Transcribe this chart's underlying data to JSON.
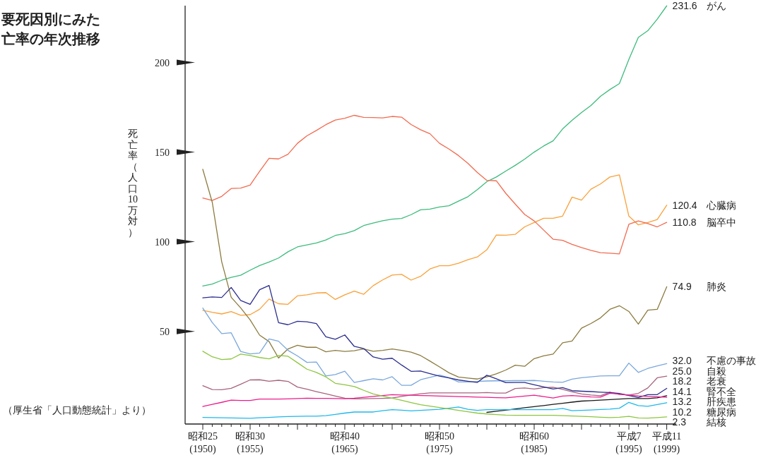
{
  "chart_data": {
    "type": "line",
    "title": "要死因別にみた",
    "subtitle": "亡率の年次推移",
    "ylabel": "死亡率（人口10万対）",
    "annotations": [
      "（厚生省「人口動態統計」より）"
    ],
    "ylim": [
      -1.7,
      231.7
    ],
    "yticks": [
      50,
      100,
      150,
      200
    ],
    "categories": [
      "昭和25\n(1950)",
      null,
      null,
      null,
      null,
      "昭和30\n(1955)",
      null,
      null,
      null,
      null,
      null,
      null,
      null,
      null,
      null,
      "昭和40\n(1965)",
      null,
      null,
      null,
      null,
      null,
      null,
      null,
      null,
      null,
      "昭和50\n(1975)",
      null,
      null,
      null,
      null,
      null,
      null,
      null,
      null,
      null,
      "昭和60\n(1985)",
      null,
      null,
      null,
      null,
      null,
      null,
      null,
      null,
      null,
      "平成7\n(1995)",
      null,
      null,
      null,
      "平成11\n(1999)"
    ],
    "series": [
      {
        "name": "がん",
        "color": "#3dbb7c",
        "values": [
          75.3,
          76.4,
          78.5,
          80.1,
          81.3,
          84.1,
          86.7,
          88.7,
          90.9,
          94.4,
          97.1,
          98.2,
          99.3,
          101,
          103.5,
          104.5,
          106.2,
          109,
          110.4,
          111.7,
          112.6,
          113,
          115.1,
          117.8,
          118.2,
          119.4,
          120.1,
          122.6,
          125.1,
          129.1,
          133.5,
          136.1,
          139.4,
          142.6,
          146.1,
          150,
          153.4,
          156.3,
          162.9,
          167.7,
          172.1,
          176,
          181.1,
          184.9,
          188.2,
          201.7,
          214,
          217.7,
          224.2,
          231.6
        ],
        "value_labels": [
          null,
          null,
          null,
          null,
          null,
          null,
          null,
          null,
          null,
          null,
          null,
          null,
          null,
          null,
          null,
          null,
          null,
          null,
          null,
          null,
          null,
          null,
          null,
          null,
          null,
          null,
          null,
          null,
          null,
          null,
          null,
          null,
          null,
          null,
          null,
          null,
          null,
          null,
          null,
          null,
          null,
          null,
          null,
          null,
          null,
          null,
          null,
          null,
          null,
          "231.6"
        ]
      },
      {
        "name": "心臓病",
        "color": "#f9a13a",
        "values": [
          61.7,
          60.6,
          59.7,
          61,
          59,
          59.3,
          62.3,
          68,
          65.4,
          65.1,
          69.8,
          70.4,
          71.4,
          71.6,
          67.8,
          70.4,
          72.4,
          70.7,
          75.5,
          78.7,
          81.4,
          81.8,
          78.6,
          80.7,
          84.8,
          86.6,
          86.6,
          88,
          90,
          91.5,
          95.5,
          103.7,
          103.6,
          104.1,
          108.3,
          110.7,
          113.1,
          113.1,
          114.3,
          124.9,
          123.2,
          129.3,
          132.2,
          136.1,
          137.3,
          114.3,
          109.4,
          110.7,
          112.4,
          120.4
        ],
        "value_labels": [
          null,
          null,
          null,
          null,
          null,
          null,
          null,
          null,
          null,
          null,
          null,
          null,
          null,
          null,
          null,
          null,
          null,
          null,
          null,
          null,
          null,
          null,
          null,
          null,
          null,
          null,
          null,
          null,
          null,
          null,
          null,
          null,
          null,
          null,
          null,
          null,
          null,
          null,
          null,
          null,
          null,
          null,
          null,
          null,
          null,
          null,
          null,
          null,
          null,
          "120.4"
        ]
      },
      {
        "name": "脳卒中",
        "color": "#f26b50",
        "values": [
          124.4,
          123,
          125.3,
          129.7,
          129.9,
          131.6,
          139.3,
          146.5,
          146.2,
          148.8,
          154.9,
          159.1,
          162.1,
          165.3,
          167.9,
          168.9,
          170.5,
          169.4,
          169.3,
          169.1,
          169.9,
          169.5,
          165.4,
          162.5,
          160.2,
          154.9,
          151.7,
          148.1,
          143.7,
          138.6,
          134.2,
          134,
          127,
          121,
          115.2,
          111.6,
          106.5,
          101.4,
          100.8,
          98.5,
          96.7,
          95.2,
          93.9,
          93.6,
          93.2,
          109.7,
          111.6,
          110.1,
          108.3,
          110.8
        ],
        "value_labels": [
          null,
          null,
          null,
          null,
          null,
          null,
          null,
          null,
          null,
          null,
          null,
          null,
          null,
          null,
          null,
          null,
          null,
          null,
          null,
          null,
          null,
          null,
          null,
          null,
          null,
          null,
          null,
          null,
          null,
          null,
          null,
          null,
          null,
          null,
          null,
          null,
          null,
          null,
          null,
          null,
          null,
          null,
          null,
          null,
          null,
          null,
          null,
          null,
          null,
          "110.8"
        ]
      },
      {
        "name": "肺炎",
        "color": "#8b7b3e",
        "values": [
          140.4,
          122,
          88.8,
          69,
          63.1,
          56.4,
          47.9,
          44.3,
          35.1,
          40.2,
          42.2,
          41.1,
          41.1,
          38.6,
          39.4,
          38.8,
          39.2,
          40.2,
          38.9,
          39.4,
          40.2,
          39.4,
          38.4,
          36.5,
          33.4,
          30.2,
          26.9,
          24.5,
          23.9,
          23.4,
          24.6,
          26.3,
          28.4,
          31.1,
          30.5,
          34.8,
          36.3,
          37.3,
          43.6,
          44.6,
          51.8,
          54.4,
          57.5,
          62.3,
          64.3,
          61.1,
          54,
          61.8,
          62.3,
          74.9
        ],
        "value_labels": [
          null,
          null,
          null,
          null,
          null,
          null,
          null,
          null,
          null,
          null,
          null,
          null,
          null,
          null,
          null,
          null,
          null,
          null,
          null,
          null,
          null,
          null,
          null,
          null,
          null,
          null,
          null,
          null,
          null,
          null,
          null,
          null,
          null,
          null,
          null,
          null,
          null,
          null,
          null,
          null,
          null,
          null,
          null,
          null,
          null,
          null,
          null,
          null,
          null,
          "74.9"
        ]
      },
      {
        "name": "不慮の事故",
        "color": "#7aa7dc",
        "values": [
          63,
          54.9,
          48.7,
          49.2,
          38.8,
          37.4,
          37.9,
          45.8,
          44.5,
          39.4,
          36.3,
          32.7,
          32.9,
          25.1,
          25.9,
          27.8,
          21.5,
          22.5,
          23.5,
          22.9,
          24.7,
          19.9,
          19.9,
          23,
          24.3,
          25.6,
          24.1,
          21.8,
          21.8,
          22.1,
          22.3,
          22.4,
          22.4,
          22.5,
          22.5,
          22.6,
          22.2,
          21.8,
          21.6,
          23.3,
          24.1,
          24.6,
          25.1,
          25.2,
          25.2,
          32.3,
          27.1,
          29.3,
          30.7,
          32
        ],
        "value_labels": [
          null,
          null,
          null,
          null,
          null,
          null,
          null,
          null,
          null,
          null,
          null,
          null,
          null,
          null,
          null,
          null,
          null,
          null,
          null,
          null,
          null,
          null,
          null,
          null,
          null,
          null,
          null,
          null,
          null,
          null,
          null,
          null,
          null,
          null,
          null,
          null,
          null,
          null,
          null,
          null,
          null,
          null,
          null,
          null,
          null,
          null,
          null,
          null,
          null,
          "32.0"
        ]
      },
      {
        "name": "自殺",
        "color": "#a8637e",
        "values": [
          19.7,
          17.5,
          17.4,
          18.2,
          20.5,
          22.9,
          23,
          22.2,
          22.7,
          22.1,
          18.9,
          17.7,
          16.4,
          15.2,
          13.9,
          12.7,
          12.3,
          12.4,
          12.5,
          12.6,
          12.8,
          13.7,
          14.5,
          15.2,
          15.7,
          15.7,
          15.7,
          15.7,
          15.7,
          15.7,
          15.9,
          15.6,
          15.6,
          18.1,
          18.4,
          17.8,
          18.6,
          18.8,
          17.6,
          16.3,
          15.1,
          14.5,
          14.1,
          16.1,
          14.8,
          14.5,
          15.4,
          18.4,
          24.1,
          25
        ],
        "value_labels": [
          null,
          null,
          null,
          null,
          null,
          null,
          null,
          null,
          null,
          null,
          null,
          null,
          null,
          null,
          null,
          null,
          null,
          null,
          null,
          null,
          null,
          null,
          null,
          null,
          null,
          null,
          null,
          null,
          null,
          null,
          null,
          null,
          null,
          null,
          null,
          null,
          null,
          null,
          null,
          null,
          null,
          null,
          null,
          null,
          null,
          null,
          null,
          null,
          null,
          "25.0"
        ]
      },
      {
        "name": "老衰",
        "color": "#2b2e8f",
        "values": [
          68.7,
          69.2,
          68.9,
          74.5,
          67.2,
          65.1,
          73.2,
          75.6,
          54.8,
          53.7,
          55.6,
          55.3,
          54.3,
          47,
          45.6,
          48,
          41.6,
          40.4,
          35.7,
          34.5,
          35,
          31.2,
          27.7,
          27.9,
          26.4,
          25,
          24,
          22.9,
          22.2,
          21.5,
          25.5,
          23.5,
          21.4,
          21.5,
          21.5,
          20.2,
          19,
          17.8,
          18.6,
          16.9,
          16.6,
          16.4,
          16.1,
          15.9,
          15.4,
          14.2,
          13.1,
          14.7,
          14.7,
          18.2
        ],
        "value_labels": [
          null,
          null,
          null,
          null,
          null,
          null,
          null,
          null,
          null,
          null,
          null,
          null,
          null,
          null,
          null,
          null,
          null,
          null,
          null,
          null,
          null,
          null,
          null,
          null,
          null,
          null,
          null,
          null,
          null,
          null,
          null,
          null,
          null,
          null,
          null,
          null,
          null,
          null,
          null,
          null,
          null,
          null,
          null,
          null,
          null,
          null,
          null,
          null,
          null,
          "18.2"
        ]
      },
      {
        "name": "腎不全",
        "color": "#1a1a1a",
        "values": [
          null,
          null,
          null,
          null,
          null,
          null,
          null,
          null,
          null,
          null,
          null,
          null,
          null,
          null,
          null,
          null,
          null,
          null,
          null,
          null,
          null,
          null,
          null,
          null,
          null,
          null,
          null,
          null,
          null,
          null,
          4.8,
          5.4,
          6,
          6.7,
          7.4,
          8,
          8.6,
          9.3,
          9.9,
          10.5,
          11.1,
          11.3,
          11.6,
          11.9,
          12.2,
          12.5,
          12.5,
          12.5,
          12.9,
          14.1
        ],
        "value_labels": [
          null,
          null,
          null,
          null,
          null,
          null,
          null,
          null,
          null,
          null,
          null,
          null,
          null,
          null,
          null,
          null,
          null,
          null,
          null,
          null,
          null,
          null,
          null,
          null,
          null,
          null,
          null,
          null,
          null,
          null,
          null,
          null,
          null,
          null,
          null,
          null,
          null,
          null,
          null,
          null,
          null,
          null,
          null,
          null,
          null,
          null,
          null,
          null,
          null,
          "14.1"
        ]
      },
      {
        "name": "肝疾患",
        "color": "#ec1c8c",
        "values": [
          8.1,
          9.3,
          10.4,
          11.6,
          11.4,
          11.4,
          12.2,
          12.2,
          12.2,
          12.3,
          12.5,
          12.7,
          12.6,
          12.6,
          12.5,
          12.4,
          12.7,
          13.2,
          13.7,
          14.2,
          14.7,
          14.5,
          14.4,
          14.2,
          14.1,
          13.9,
          13.8,
          13.6,
          13.5,
          13.3,
          13.2,
          13,
          12.9,
          13.4,
          13.9,
          14.4,
          13.6,
          12.8,
          13.9,
          14.2,
          13.8,
          13.4,
          13.3,
          15.5,
          15,
          14.5,
          14,
          13.7,
          13.5,
          13.2
        ],
        "value_labels": [
          null,
          null,
          null,
          null,
          null,
          null,
          null,
          null,
          null,
          null,
          null,
          null,
          null,
          null,
          null,
          null,
          null,
          null,
          null,
          null,
          null,
          null,
          null,
          null,
          null,
          null,
          null,
          null,
          null,
          null,
          null,
          null,
          null,
          null,
          null,
          null,
          null,
          null,
          null,
          null,
          null,
          null,
          null,
          null,
          null,
          null,
          null,
          null,
          null,
          "13.2"
        ]
      },
      {
        "name": "糖尿病",
        "color": "#1fb8ec",
        "values": [
          2,
          1.9,
          1.8,
          1.7,
          1.6,
          1.5,
          1.8,
          2,
          2.3,
          2.5,
          2.6,
          2.7,
          2.7,
          3,
          3.7,
          4.4,
          5,
          5,
          5,
          5.7,
          6.3,
          6,
          5.6,
          5.9,
          6.2,
          6.5,
          7.1,
          7.8,
          6.5,
          5.9,
          6.3,
          6.3,
          6.3,
          6.3,
          6.3,
          6.3,
          6.3,
          6.3,
          7,
          5.7,
          5.9,
          6.1,
          6.4,
          6.6,
          7.1,
          10.4,
          8.6,
          8.2,
          9.2,
          10.2
        ],
        "value_labels": [
          null,
          null,
          null,
          null,
          null,
          null,
          null,
          null,
          null,
          null,
          null,
          null,
          null,
          null,
          null,
          null,
          null,
          null,
          null,
          null,
          null,
          null,
          null,
          null,
          null,
          null,
          null,
          null,
          null,
          null,
          null,
          null,
          null,
          null,
          null,
          null,
          null,
          null,
          null,
          null,
          null,
          null,
          null,
          null,
          null,
          null,
          null,
          null,
          null,
          "10.2"
        ]
      },
      {
        "name": "結核",
        "color": "#8cc63f",
        "values": [
          38.9,
          35.8,
          34.3,
          34.6,
          37.3,
          36.5,
          35.4,
          34.7,
          36.5,
          36.1,
          32.5,
          28.9,
          27.1,
          24.6,
          21,
          20.2,
          19.2,
          17.1,
          15.1,
          13.9,
          12.7,
          11.5,
          10.3,
          9.1,
          8.3,
          7.5,
          6.7,
          5.9,
          5.1,
          4.4,
          3.9,
          3.6,
          3.3,
          3.2,
          3.2,
          3.2,
          3.2,
          3.2,
          3,
          2.8,
          2.6,
          2.4,
          2.1,
          1.9,
          2.1,
          2.6,
          1.7,
          1.6,
          1.9,
          2.3
        ],
        "value_labels": [
          null,
          null,
          null,
          null,
          null,
          null,
          null,
          null,
          null,
          null,
          null,
          null,
          null,
          null,
          null,
          null,
          null,
          null,
          null,
          null,
          null,
          null,
          null,
          null,
          null,
          null,
          null,
          null,
          null,
          null,
          null,
          null,
          null,
          null,
          null,
          null,
          null,
          null,
          null,
          null,
          null,
          null,
          null,
          null,
          null,
          null,
          null,
          null,
          null,
          "2.3"
        ]
      }
    ]
  }
}
